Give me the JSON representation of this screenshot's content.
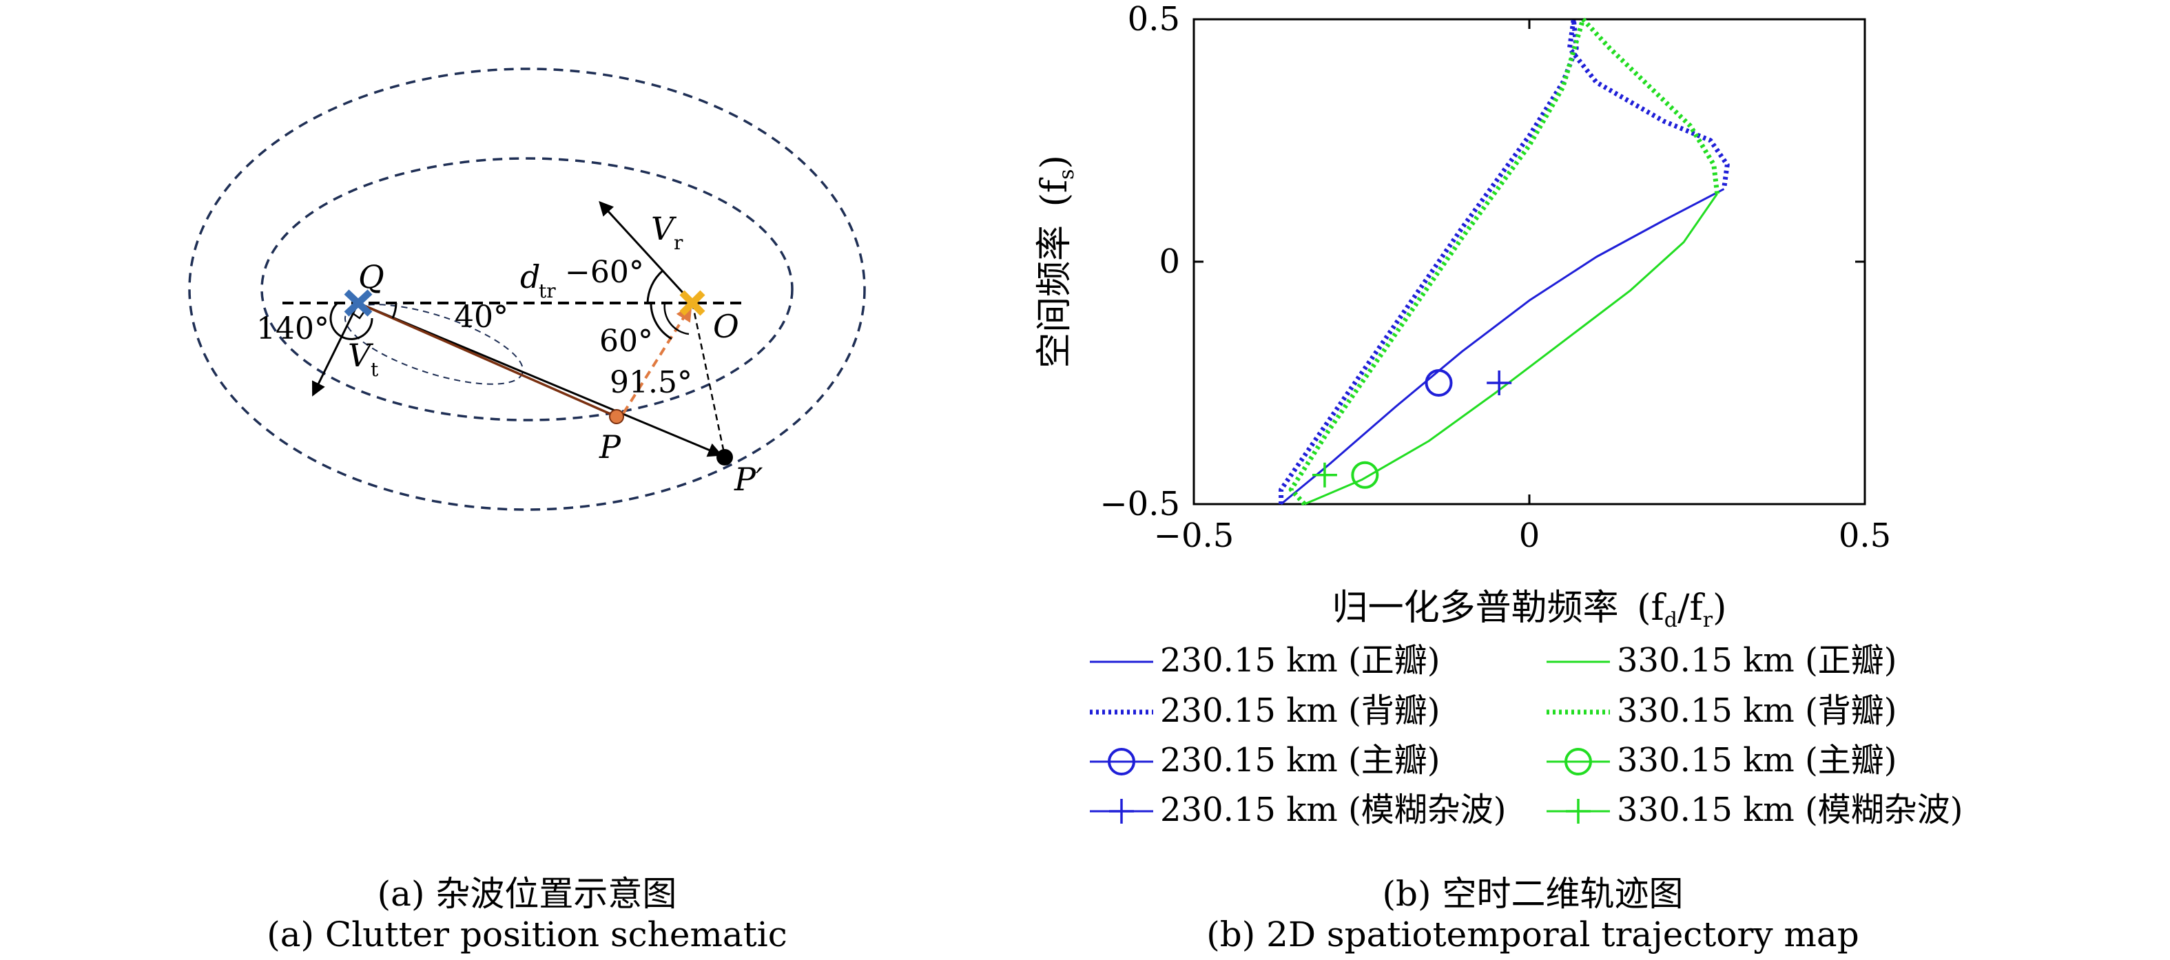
{
  "schematic": {
    "caption_cn": "(a) 杂波位置示意图",
    "caption_en": "(a) Clutter position schematic",
    "labels": {
      "Q": "Q",
      "O": "O",
      "P": "P",
      "Pp": "P′",
      "Vr": "V",
      "Vr_sub": "r",
      "Vt": "V",
      "Vt_sub": "t",
      "dtr": "d",
      "dtr_sub": "tr",
      "angle_m60": "−60°",
      "angle_60": "60°",
      "angle_140": "140°",
      "angle_40": "40°",
      "angle_915": "91.5°"
    },
    "colors": {
      "ellipse": "#1f2f55",
      "transmitter": "#3a6fb5",
      "receiver": "#f0b020",
      "point_p": "#e07a40",
      "arrow_orange": "#e07a40",
      "line_qp": "#7a3010"
    }
  },
  "chart_data": {
    "type": "line",
    "caption_cn": "(b) 空时二维轨迹图",
    "caption_en": "(b) 2D spatiotemporal trajectory map",
    "xlabel_cn": "归一化多普勒频率",
    "xlabel_sym": "(f",
    "xlabel_sub1": "d",
    "xlabel_mid": "/f",
    "xlabel_sub2": "r",
    "xlabel_end": ")",
    "ylabel_cn": "空间频率",
    "ylabel_sym": "(f",
    "ylabel_sub": "s",
    "ylabel_end": ")",
    "xlim": [
      -0.5,
      0.5
    ],
    "ylim": [
      -0.5,
      0.5
    ],
    "xticks": [
      -0.5,
      0,
      0.5
    ],
    "yticks": [
      -0.5,
      0,
      0.5
    ],
    "xtick_labels": [
      "−0.5",
      "0",
      "0.5"
    ],
    "ytick_labels": [
      "−0.5",
      "0",
      "0.5"
    ],
    "grid": false,
    "legend_position": "bottom",
    "series": [
      {
        "name": "230.15 km (正瓣)",
        "color": "#1f1fd8",
        "style": "solid",
        "points": [
          [
            -0.37,
            -0.5
          ],
          [
            -0.3,
            -0.42
          ],
          [
            -0.2,
            -0.3
          ],
          [
            -0.1,
            -0.185
          ],
          [
            0.0,
            -0.08
          ],
          [
            0.1,
            0.01
          ],
          [
            0.2,
            0.085
          ],
          [
            0.29,
            0.15
          ]
        ]
      },
      {
        "name": "230.15 km (背瓣)",
        "color": "#1f1fd8",
        "style": "dotted",
        "points": [
          [
            -0.37,
            -0.5
          ],
          [
            -0.37,
            -0.47
          ],
          [
            -0.3,
            -0.33
          ],
          [
            -0.2,
            -0.13
          ],
          [
            -0.1,
            0.07
          ],
          [
            0.0,
            0.26
          ],
          [
            0.05,
            0.37
          ],
          [
            0.07,
            0.44
          ],
          [
            0.066,
            0.5
          ],
          [
            0.06,
            0.44
          ],
          [
            0.1,
            0.37
          ],
          [
            0.2,
            0.29
          ],
          [
            0.27,
            0.25
          ],
          [
            0.295,
            0.2
          ],
          [
            0.29,
            0.15
          ]
        ]
      },
      {
        "name": "330.15 km (正瓣)",
        "color": "#22dd22",
        "style": "solid",
        "points": [
          [
            -0.335,
            -0.5
          ],
          [
            -0.25,
            -0.45
          ],
          [
            -0.15,
            -0.37
          ],
          [
            -0.05,
            -0.27
          ],
          [
            0.05,
            -0.165
          ],
          [
            0.15,
            -0.06
          ],
          [
            0.23,
            0.04
          ],
          [
            0.28,
            0.14
          ]
        ]
      },
      {
        "name": "330.15 km (背瓣)",
        "color": "#22dd22",
        "style": "dotted",
        "points": [
          [
            -0.335,
            -0.5
          ],
          [
            -0.355,
            -0.47
          ],
          [
            -0.3,
            -0.35
          ],
          [
            -0.2,
            -0.15
          ],
          [
            -0.1,
            0.05
          ],
          [
            0.0,
            0.24
          ],
          [
            0.05,
            0.36
          ],
          [
            0.08,
            0.5
          ],
          [
            0.12,
            0.44
          ],
          [
            0.18,
            0.36
          ],
          [
            0.24,
            0.28
          ],
          [
            0.275,
            0.2
          ],
          [
            0.28,
            0.14
          ]
        ]
      },
      {
        "name": "230.15 km (主瓣)",
        "color": "#1f1fd8",
        "style": "marker-circle",
        "points": [
          [
            -0.135,
            -0.25
          ]
        ]
      },
      {
        "name": "330.15 km (主瓣)",
        "color": "#22dd22",
        "style": "marker-circle",
        "points": [
          [
            -0.245,
            -0.44
          ]
        ]
      },
      {
        "name": "230.15 km (模糊杂波)",
        "color": "#1f1fd8",
        "style": "marker-plus",
        "points": [
          [
            -0.045,
            -0.25
          ]
        ]
      },
      {
        "name": "330.15 km (模糊杂波)",
        "color": "#22dd22",
        "style": "marker-plus",
        "points": [
          [
            -0.305,
            -0.44
          ]
        ]
      }
    ],
    "legend": [
      {
        "label": "230.15 km (正瓣)",
        "color": "#1f1fd8",
        "style": "solid"
      },
      {
        "label": "330.15 km (正瓣)",
        "color": "#22dd22",
        "style": "solid"
      },
      {
        "label": "230.15 km (背瓣)",
        "color": "#1f1fd8",
        "style": "dotted"
      },
      {
        "label": "330.15 km (背瓣)",
        "color": "#22dd22",
        "style": "dotted"
      },
      {
        "label": "230.15 km (主瓣)",
        "color": "#1f1fd8",
        "style": "marker-circle"
      },
      {
        "label": "330.15 km (主瓣)",
        "color": "#22dd22",
        "style": "marker-circle"
      },
      {
        "label": "230.15 km (模糊杂波)",
        "color": "#1f1fd8",
        "style": "marker-plus"
      },
      {
        "label": "330.15 km (模糊杂波)",
        "color": "#22dd22",
        "style": "marker-plus"
      }
    ]
  }
}
